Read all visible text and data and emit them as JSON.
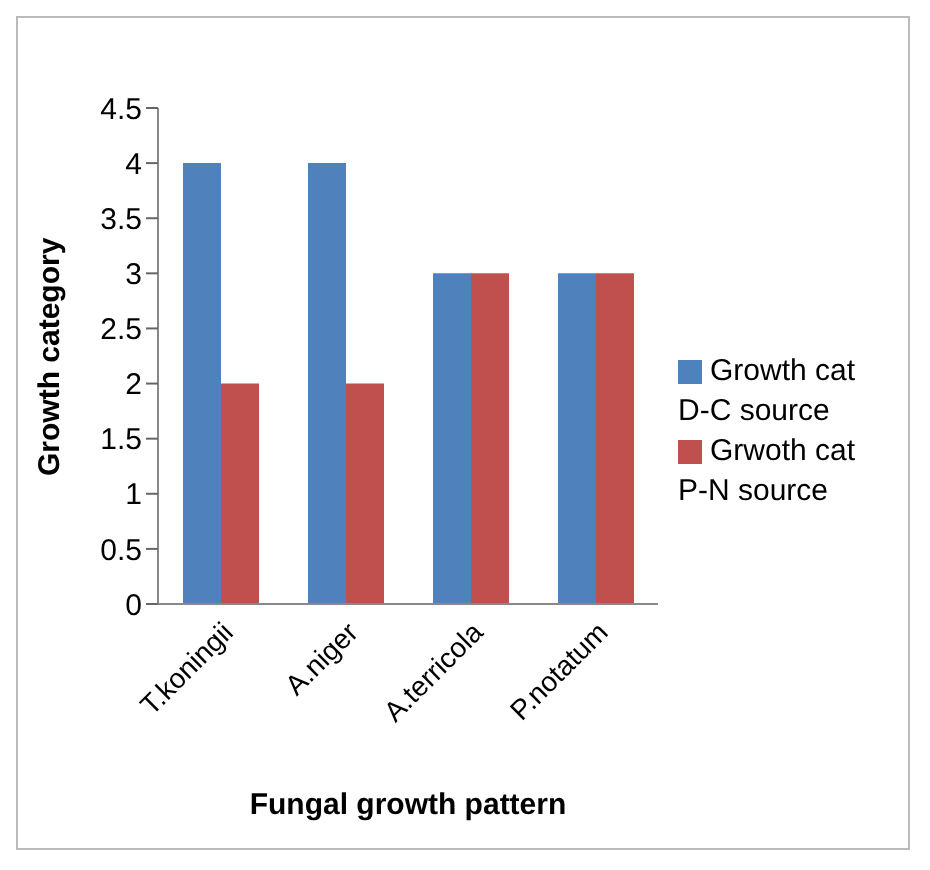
{
  "chart_data": {
    "type": "bar",
    "xlabel": "Fungal growth pattern",
    "ylabel": "Growth category",
    "categories": [
      "T.koningii",
      "A.niger",
      "A.terricola",
      "P.notatum"
    ],
    "series": [
      {
        "name": "Growth cat D-C source",
        "color": "#4f81bd",
        "values": [
          4,
          4,
          3,
          3
        ]
      },
      {
        "name": "Grwoth cat P-N source",
        "color": "#c0504d",
        "values": [
          2,
          2,
          3,
          3
        ]
      }
    ],
    "ylim": [
      0,
      4.5
    ],
    "yticks": [
      0,
      0.5,
      1,
      1.5,
      2,
      2.5,
      3,
      3.5,
      4,
      4.5
    ],
    "grid": false,
    "legend": "right"
  }
}
